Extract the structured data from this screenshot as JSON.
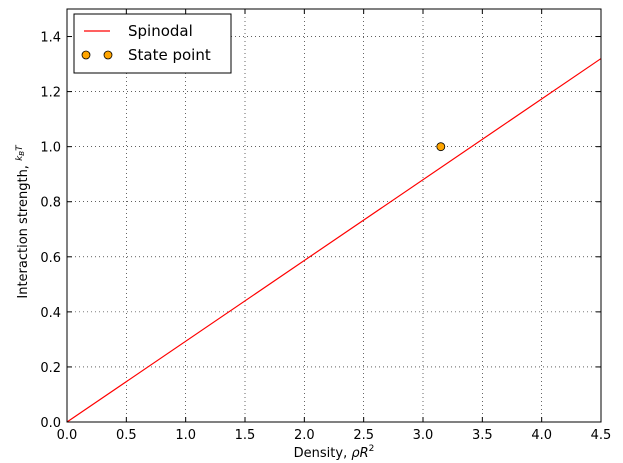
{
  "chart_data": {
    "type": "line",
    "xlabel": "Density, ",
    "xlabel_math": "ρR",
    "xlabel_sup": "2",
    "ylabel": "Interaction strength, ",
    "ylabel_math_num": "k",
    "ylabel_math_num_sub": "B",
    "ylabel_math_num_T": "T",
    "ylabel_math_den": "ε",
    "xlim": [
      0.0,
      4.5
    ],
    "ylim": [
      0.0,
      1.5
    ],
    "xticks": [
      "0.0",
      "0.5",
      "1.0",
      "1.5",
      "2.0",
      "2.5",
      "3.0",
      "3.5",
      "4.0",
      "4.5"
    ],
    "xtick_values": [
      0.0,
      0.5,
      1.0,
      1.5,
      2.0,
      2.5,
      3.0,
      3.5,
      4.0,
      4.5
    ],
    "yticks": [
      "0.0",
      "0.2",
      "0.4",
      "0.6",
      "0.8",
      "1.0",
      "1.2",
      "1.4"
    ],
    "ytick_values": [
      0.0,
      0.2,
      0.4,
      0.6,
      0.8,
      1.0,
      1.2,
      1.4
    ],
    "grid": true,
    "legend_position": "top-left",
    "series": [
      {
        "name": "Spinodal",
        "kind": "line",
        "color": "#ff0000",
        "x": [
          0.0,
          4.5
        ],
        "y": [
          0.0,
          1.32
        ]
      },
      {
        "name": "State point",
        "kind": "marker",
        "color": "#ffa500",
        "x": [
          3.15
        ],
        "y": [
          1.0
        ]
      }
    ]
  }
}
